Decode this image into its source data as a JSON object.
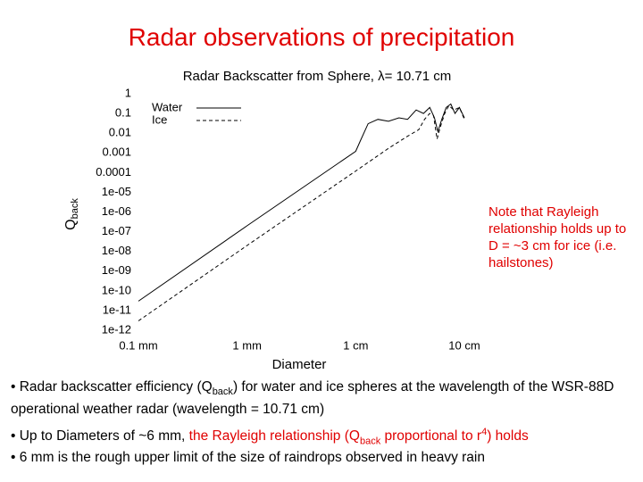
{
  "slide_title": "Radar observations of precipitation",
  "chart_data": {
    "type": "line",
    "title": "Radar Backscatter from Sphere,  λ= 10.71 cm",
    "xlabel": "Diameter",
    "ylabel": "Q",
    "ylabel_sub": "back",
    "xlog": true,
    "ylog": true,
    "legend": "upper left",
    "grid": false,
    "xlim": [
      0.1,
      100
    ],
    "ylim": [
      1e-12,
      1
    ],
    "xticks": [
      {
        "value": 0.1,
        "label": "0.1 mm"
      },
      {
        "value": 1,
        "label": "1 mm"
      },
      {
        "value": 10,
        "label": "1 cm"
      },
      {
        "value": 100,
        "label": "10 cm"
      }
    ],
    "yticks": [
      1,
      0.1,
      0.01,
      0.001,
      0.0001,
      {
        "value": 1e-05,
        "label": "1e-05"
      },
      {
        "value": 1e-06,
        "label": "1e-06"
      },
      {
        "value": 1e-07,
        "label": "1e-07"
      },
      {
        "value": 1e-08,
        "label": "1e-08"
      },
      {
        "value": 1e-09,
        "label": "1e-09"
      },
      {
        "value": 1e-10,
        "label": "1e-10"
      },
      {
        "value": 1e-11,
        "label": "1e-11"
      },
      {
        "value": 1e-12,
        "label": "1e-12"
      }
    ],
    "series": [
      {
        "name": "Water",
        "color": "#000000",
        "dash": "solid",
        "x": [
          0.1,
          1,
          10,
          11,
          13,
          16,
          20,
          25,
          30,
          36,
          42,
          48,
          53,
          57,
          62,
          68,
          75,
          82,
          90,
          100
        ],
        "values": [
          3e-11,
          2e-07,
          0.0012,
          0.004,
          0.03,
          0.05,
          0.04,
          0.06,
          0.05,
          0.15,
          0.1,
          0.2,
          0.06,
          0.012,
          0.05,
          0.2,
          0.3,
          0.1,
          0.2,
          0.06
        ]
      },
      {
        "name": "Ice",
        "color": "#000000",
        "dash": "dashed",
        "x": [
          0.1,
          1,
          10,
          20,
          30,
          38,
          43,
          48,
          52,
          56,
          60,
          66,
          72,
          80,
          90,
          100
        ],
        "values": [
          3e-12,
          2e-08,
          0.00012,
          0.0017,
          0.007,
          0.015,
          0.05,
          0.1,
          0.08,
          0.005,
          0.02,
          0.1,
          0.25,
          0.15,
          0.2,
          0.05
        ]
      }
    ]
  },
  "note": "Note that Rayleigh relationship holds up to D = ~3 cm for ice (i.e. hailstones)",
  "bullets": [
    [
      {
        "text": "• Radar backscatter efficiency (Q"
      },
      {
        "text": "back",
        "style": "sub"
      },
      {
        "text": ") for water and ice spheres at the wavelength of the WSR-88D operational weather radar (wavelength = 10.71 cm)"
      }
    ],
    [
      {
        "text": "• Up to Diameters of ~6 mm, "
      },
      {
        "text": "the Rayleigh relationship (Q",
        "color": "red"
      },
      {
        "text": "back",
        "color": "red",
        "style": "sub"
      },
      {
        "text": " proportional to r",
        "color": "red"
      },
      {
        "text": "4",
        "color": "red",
        "style": "sup"
      },
      {
        "text": ") holds",
        "color": "red"
      }
    ],
    [
      {
        "text": "• 6 mm is the rough upper limit of the size of raindrops observed in heavy rain"
      }
    ]
  ]
}
